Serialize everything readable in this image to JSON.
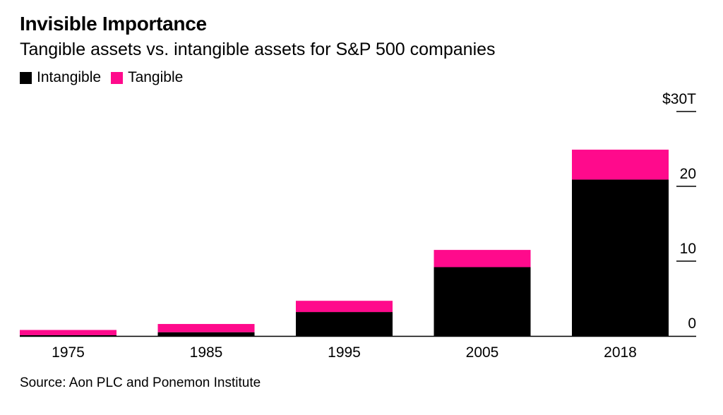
{
  "header": {
    "title": "Invisible Importance",
    "subtitle": "Tangible assets vs. intangible assets for S&P 500 companies"
  },
  "legend": [
    {
      "label": "Intangible",
      "color": "#000000"
    },
    {
      "label": "Tangible",
      "color": "#ff0a8c"
    }
  ],
  "footer": {
    "source": "Source: Aon PLC and Ponemon Institute"
  },
  "chart_data": {
    "type": "bar",
    "stacked": true,
    "title": "Invisible Importance",
    "subtitle": "Tangible assets vs. intangible assets for S&P 500 companies",
    "categories": [
      "1975",
      "1985",
      "1995",
      "2005",
      "2018"
    ],
    "series": [
      {
        "name": "Intangible",
        "color": "#000000",
        "values": [
          0.1,
          0.5,
          3.2,
          9.2,
          20.9
        ]
      },
      {
        "name": "Tangible",
        "color": "#ff0a8c",
        "values": [
          0.7,
          1.1,
          1.5,
          2.3,
          4.0
        ]
      }
    ],
    "ylim": [
      0,
      30
    ],
    "yticks": [
      0,
      10,
      20,
      30
    ],
    "ytick_labels": [
      "0",
      "10",
      "20",
      "$30T"
    ],
    "xlabel": "",
    "ylabel": "",
    "yaxis_position": "right",
    "grid": false,
    "legend_position": "top-left",
    "source": "Source: Aon PLC and Ponemon Institute"
  }
}
